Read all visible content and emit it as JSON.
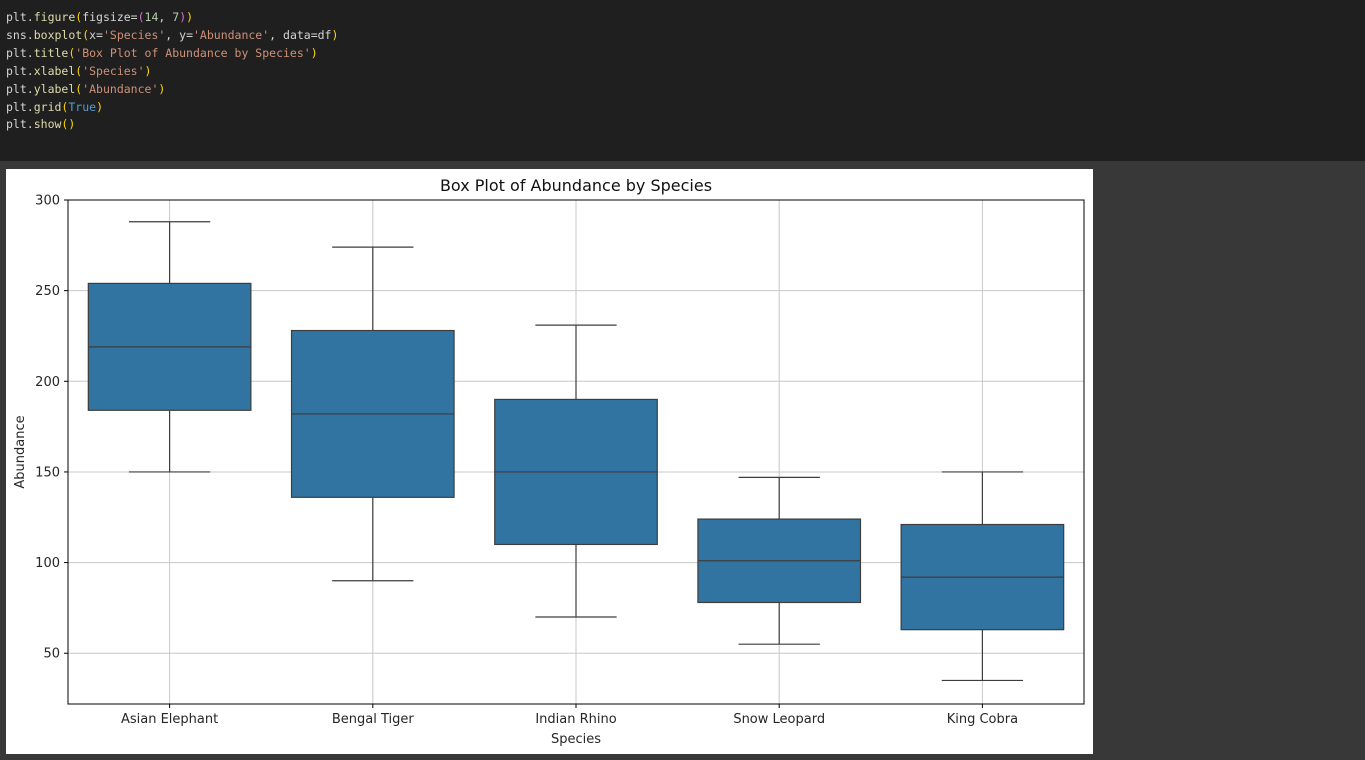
{
  "code": {
    "lines": [
      [
        {
          "t": "plt",
          "c": "var"
        },
        {
          "t": ".",
          "c": "var"
        },
        {
          "t": "figure",
          "c": "fn"
        },
        {
          "t": "(",
          "c": "p1"
        },
        {
          "t": "figsize=",
          "c": "var"
        },
        {
          "t": "(",
          "c": "p2"
        },
        {
          "t": "14",
          "c": "num"
        },
        {
          "t": ", ",
          "c": "var"
        },
        {
          "t": "7",
          "c": "num"
        },
        {
          "t": ")",
          "c": "p2"
        },
        {
          "t": ")",
          "c": "p1"
        }
      ],
      [
        {
          "t": "sns",
          "c": "var"
        },
        {
          "t": ".",
          "c": "var"
        },
        {
          "t": "boxplot",
          "c": "fn"
        },
        {
          "t": "(",
          "c": "p1"
        },
        {
          "t": "x=",
          "c": "var"
        },
        {
          "t": "'Species'",
          "c": "str"
        },
        {
          "t": ", y=",
          "c": "var"
        },
        {
          "t": "'Abundance'",
          "c": "str"
        },
        {
          "t": ", data=df",
          "c": "var"
        },
        {
          "t": ")",
          "c": "p1"
        }
      ],
      [
        {
          "t": "plt",
          "c": "var"
        },
        {
          "t": ".",
          "c": "var"
        },
        {
          "t": "title",
          "c": "fn"
        },
        {
          "t": "(",
          "c": "p1"
        },
        {
          "t": "'Box Plot of Abundance by Species'",
          "c": "str"
        },
        {
          "t": ")",
          "c": "p1"
        }
      ],
      [
        {
          "t": "plt",
          "c": "var"
        },
        {
          "t": ".",
          "c": "var"
        },
        {
          "t": "xlabel",
          "c": "fn"
        },
        {
          "t": "(",
          "c": "p1"
        },
        {
          "t": "'Species'",
          "c": "str"
        },
        {
          "t": ")",
          "c": "p1"
        }
      ],
      [
        {
          "t": "plt",
          "c": "var"
        },
        {
          "t": ".",
          "c": "var"
        },
        {
          "t": "ylabel",
          "c": "fn"
        },
        {
          "t": "(",
          "c": "p1"
        },
        {
          "t": "'Abundance'",
          "c": "str"
        },
        {
          "t": ")",
          "c": "p1"
        }
      ],
      [
        {
          "t": "plt",
          "c": "var"
        },
        {
          "t": ".",
          "c": "var"
        },
        {
          "t": "grid",
          "c": "fn"
        },
        {
          "t": "(",
          "c": "p1"
        },
        {
          "t": "True",
          "c": "kw"
        },
        {
          "t": ")",
          "c": "p1"
        }
      ],
      [
        {
          "t": "plt",
          "c": "var"
        },
        {
          "t": ".",
          "c": "var"
        },
        {
          "t": "show",
          "c": "fn"
        },
        {
          "t": "()",
          "c": "p1"
        }
      ]
    ]
  },
  "colors": {
    "box_fill": "#3274a1",
    "box_edge": "#3d3d3d",
    "grid": "#c8c8c8"
  },
  "chart_data": {
    "type": "box",
    "title": "Box Plot of Abundance by Species",
    "xlabel": "Species",
    "ylabel": "Abundance",
    "ylim": [
      22,
      300
    ],
    "yticks": [
      50,
      100,
      150,
      200,
      250,
      300
    ],
    "grid": true,
    "categories": [
      "Asian Elephant",
      "Bengal Tiger",
      "Indian Rhino",
      "Snow Leopard",
      "King Cobra"
    ],
    "boxes": [
      {
        "whislo": 150,
        "q1": 184,
        "med": 219,
        "q3": 254,
        "whishi": 288
      },
      {
        "whislo": 90,
        "q1": 136,
        "med": 182,
        "q3": 228,
        "whishi": 274
      },
      {
        "whislo": 70,
        "q1": 110,
        "med": 150,
        "q3": 190,
        "whishi": 231
      },
      {
        "whislo": 55,
        "q1": 78,
        "med": 101,
        "q3": 124,
        "whishi": 147
      },
      {
        "whislo": 35,
        "q1": 63,
        "med": 92,
        "q3": 121,
        "whishi": 150
      }
    ]
  }
}
